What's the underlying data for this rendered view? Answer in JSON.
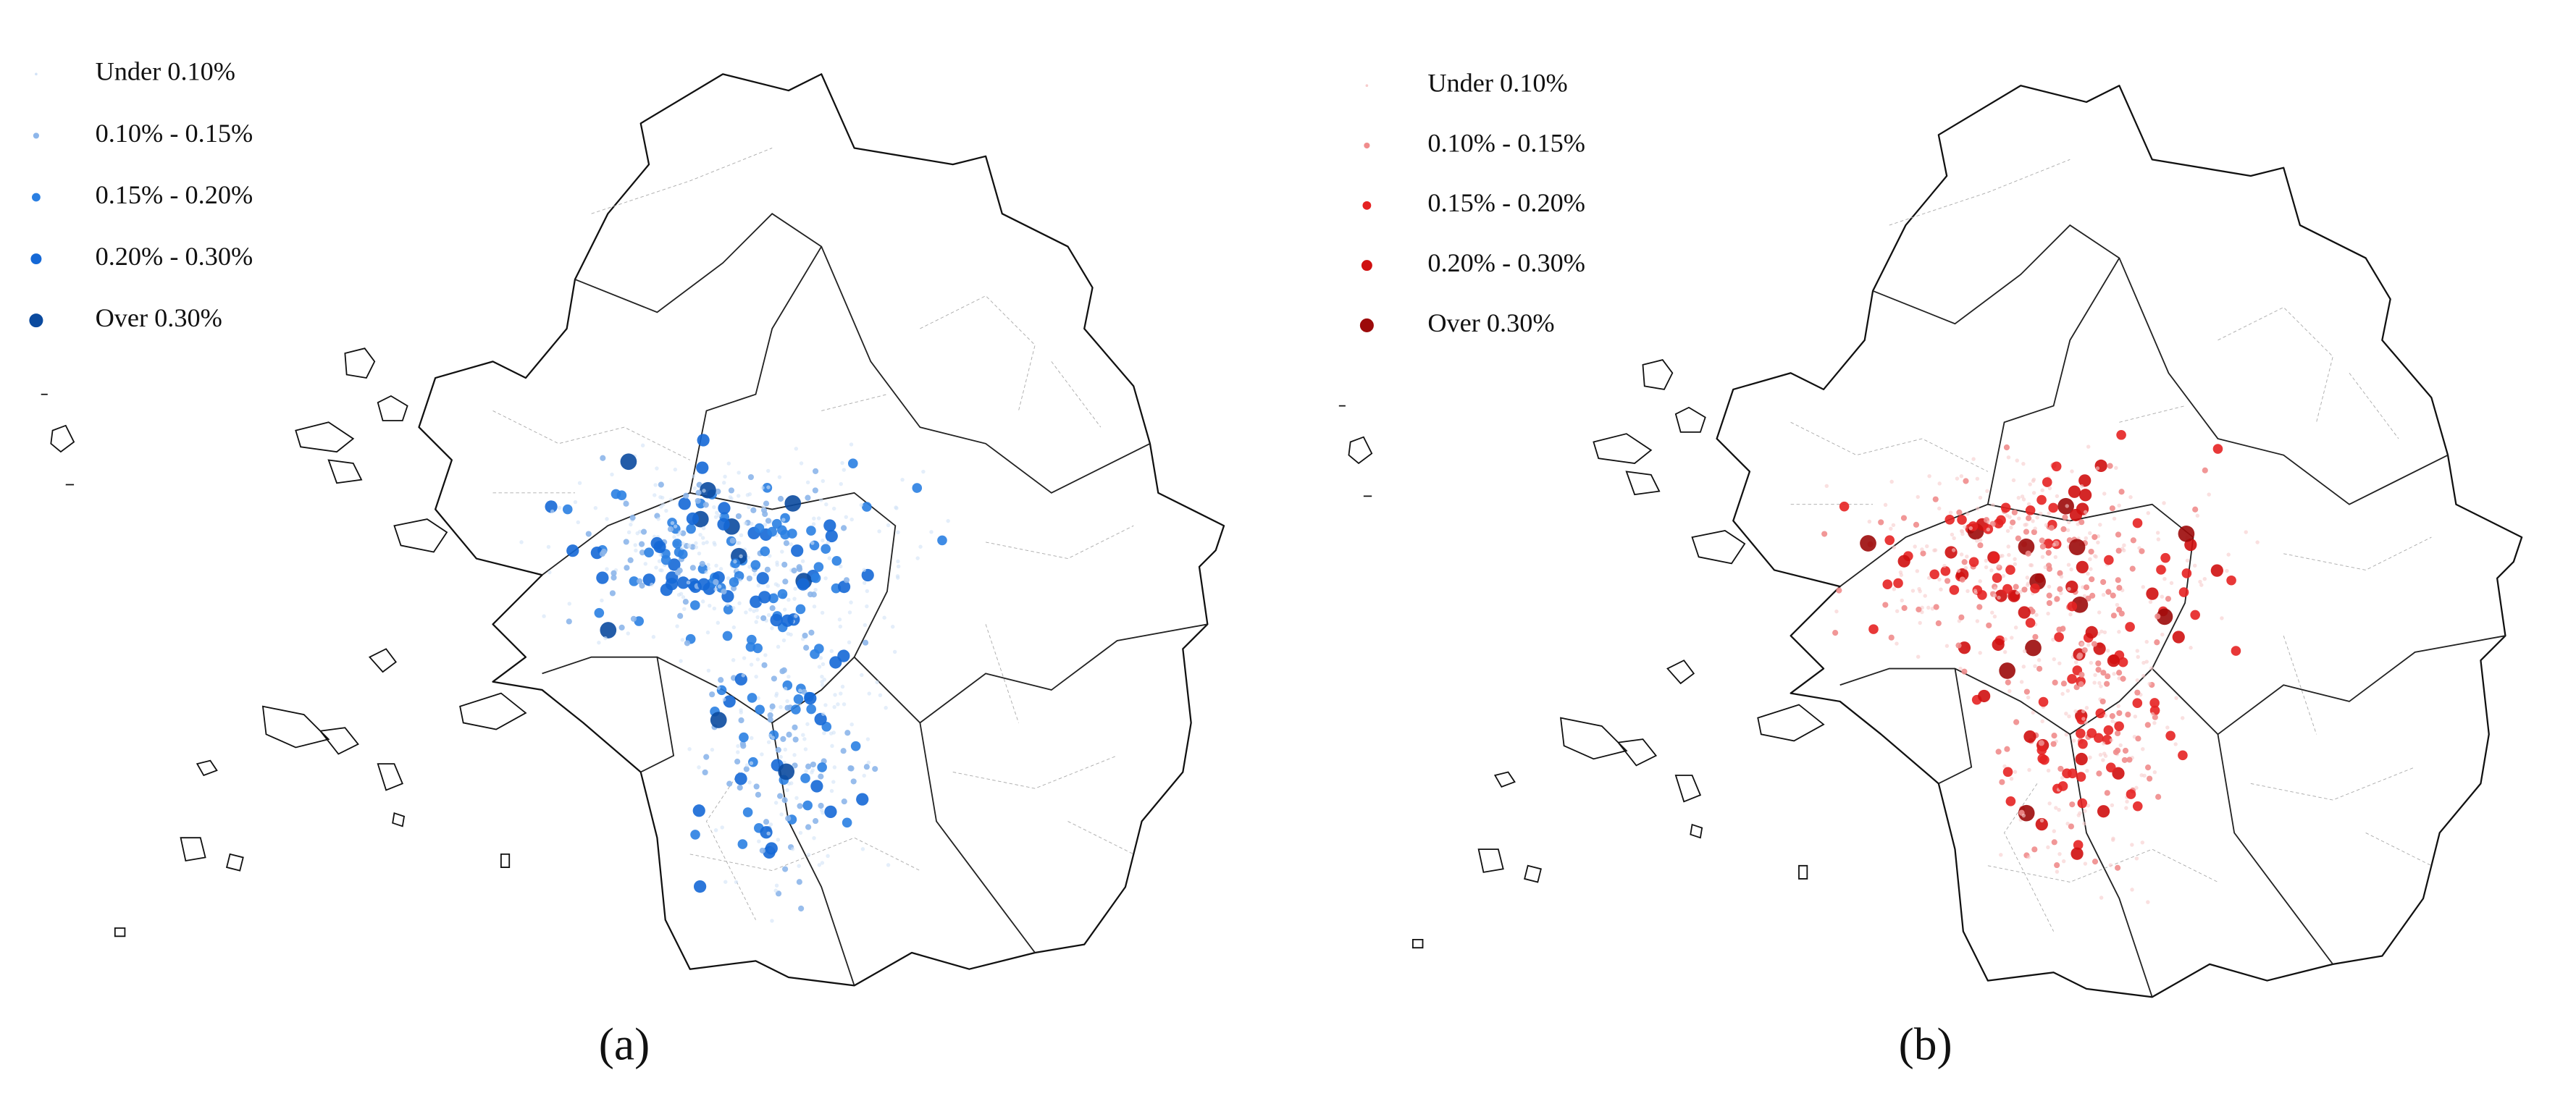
{
  "panels": [
    {
      "label": "(a)",
      "legend": [
        {
          "label": "Under 0.10%",
          "color": "#d2e2f6"
        },
        {
          "label": "0.10% - 0.15%",
          "color": "#8db6ea"
        },
        {
          "label": "0.15% - 0.20%",
          "color": "#2a7fe2"
        },
        {
          "label": "0.20% - 0.30%",
          "color": "#1568d6"
        },
        {
          "label": "Over 0.30%",
          "color": "#0b4a9e"
        }
      ]
    },
    {
      "label": "(b)",
      "legend": [
        {
          "label": "Under 0.10%",
          "color": "#f7cccc"
        },
        {
          "label": "0.10% - 0.15%",
          "color": "#f08c8c"
        },
        {
          "label": "0.15% - 0.20%",
          "color": "#e52222"
        },
        {
          "label": "0.20% - 0.30%",
          "color": "#cf1010"
        },
        {
          "label": "Over 0.30%",
          "color": "#9c0a0a"
        }
      ]
    }
  ]
}
